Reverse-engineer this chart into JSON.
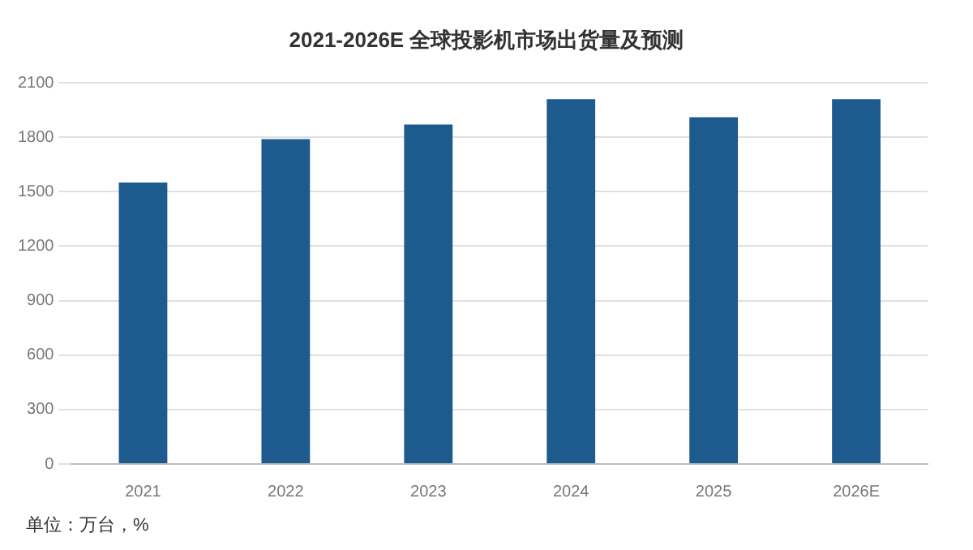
{
  "chart_data": {
    "type": "bar",
    "title": "2021-2026E 全球投影机市场出货量及预测",
    "categories": [
      "2021",
      "2022",
      "2023",
      "2024",
      "2025",
      "2026E"
    ],
    "values": [
      1550,
      1790,
      1870,
      2010,
      1910,
      2010
    ],
    "color": "#1d5b8e",
    "ylim": [
      0,
      2100
    ],
    "yticks": [
      0,
      300,
      600,
      900,
      1200,
      1500,
      1800,
      2100
    ],
    "grid": "y",
    "legend": false,
    "annotations": [
      "单位：万台，%"
    ]
  }
}
